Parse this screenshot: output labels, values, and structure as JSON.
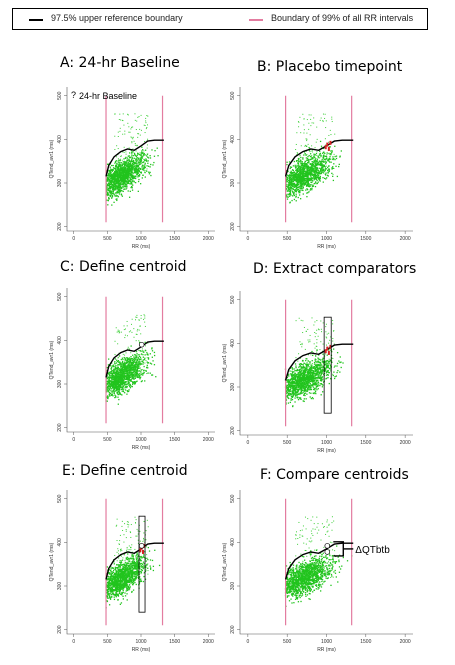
{
  "legend": {
    "black_label": "97.5% upper reference boundary",
    "pink_label": "Boundary of 99% of all RR intervals",
    "black_color": "#000000",
    "pink_color": "#e37ca0"
  },
  "chart_data": [
    {
      "type": "scatter",
      "panel": "A",
      "title": "A: 24-hr Baseline",
      "xlabel": "RR (ms)",
      "ylabel": "QTend_avr1 (ms)",
      "xlim": [
        -100,
        2100
      ],
      "ylim": [
        190,
        520
      ],
      "xticks": [
        0,
        500,
        1000,
        1500,
        2000
      ],
      "yticks": [
        200,
        300,
        400,
        500
      ],
      "boundary_x": [
        480,
        1320
      ],
      "upper_curve": [
        [
          480,
          315
        ],
        [
          520,
          340
        ],
        [
          600,
          360
        ],
        [
          700,
          372
        ],
        [
          800,
          378
        ],
        [
          900,
          375
        ],
        [
          1000,
          385
        ],
        [
          1100,
          396
        ],
        [
          1200,
          398
        ],
        [
          1340,
          398
        ]
      ],
      "inset_label": "24-hr Baseline",
      "marker": "none"
    },
    {
      "type": "scatter",
      "panel": "B",
      "title": "B: Placebo timepoint",
      "xlabel": "RR (ms)",
      "ylabel": "QTend_avr1 (ms)",
      "xlim": [
        -100,
        2100
      ],
      "ylim": [
        190,
        520
      ],
      "xticks": [
        0,
        500,
        1000,
        1500,
        2000
      ],
      "yticks": [
        200,
        300,
        400,
        500
      ],
      "boundary_x": [
        480,
        1320
      ],
      "upper_curve": [
        [
          480,
          315
        ],
        [
          520,
          340
        ],
        [
          600,
          360
        ],
        [
          700,
          372
        ],
        [
          800,
          378
        ],
        [
          900,
          375
        ],
        [
          1000,
          385
        ],
        [
          1100,
          396
        ],
        [
          1200,
          398
        ],
        [
          1340,
          398
        ]
      ],
      "placebo_points": [
        [
          990,
          382
        ],
        [
          1010,
          388
        ],
        [
          1030,
          378
        ],
        [
          1050,
          392
        ]
      ],
      "marker": "none"
    },
    {
      "type": "scatter",
      "panel": "C",
      "title": "C: Define centroid",
      "xlabel": "RR (ms)",
      "ylabel": "QTend_avr1 (ms)",
      "xlim": [
        -100,
        2100
      ],
      "ylim": [
        190,
        520
      ],
      "xticks": [
        0,
        500,
        1000,
        1500,
        2000
      ],
      "yticks": [
        200,
        300,
        400,
        500
      ],
      "boundary_x": [
        480,
        1320
      ],
      "upper_curve": [
        [
          480,
          315
        ],
        [
          520,
          340
        ],
        [
          600,
          360
        ],
        [
          700,
          372
        ],
        [
          800,
          378
        ],
        [
          900,
          375
        ],
        [
          1000,
          385
        ],
        [
          1100,
          396
        ],
        [
          1200,
          398
        ],
        [
          1340,
          398
        ]
      ],
      "centroid": [
        1010,
        390
      ],
      "marker": "centroid"
    },
    {
      "type": "scatter",
      "panel": "D",
      "title": "D: Extract comparators",
      "xlabel": "RR (ms)",
      "ylabel": "QTend_avr1 (ms)",
      "xlim": [
        -100,
        2100
      ],
      "ylim": [
        190,
        520
      ],
      "xticks": [
        0,
        500,
        1000,
        1500,
        2000
      ],
      "yticks": [
        200,
        300,
        400,
        500
      ],
      "boundary_x": [
        480,
        1320
      ],
      "upper_curve": [
        [
          480,
          315
        ],
        [
          520,
          340
        ],
        [
          600,
          360
        ],
        [
          700,
          372
        ],
        [
          800,
          378
        ],
        [
          900,
          375
        ],
        [
          1000,
          385
        ],
        [
          1100,
          396
        ],
        [
          1200,
          398
        ],
        [
          1340,
          398
        ]
      ],
      "placebo_points": [
        [
          990,
          382
        ],
        [
          1010,
          388
        ],
        [
          1030,
          378
        ],
        [
          1050,
          392
        ]
      ],
      "window_rect": [
        970,
        1060,
        240,
        460
      ],
      "marker": "window"
    },
    {
      "type": "scatter",
      "panel": "E",
      "title": "E: Define centroid",
      "xlabel": "RR (ms)",
      "ylabel": "QTend_avr1 (ms)",
      "xlim": [
        -100,
        2100
      ],
      "ylim": [
        190,
        520
      ],
      "xticks": [
        0,
        500,
        1000,
        1500,
        2000
      ],
      "yticks": [
        200,
        300,
        400,
        500
      ],
      "boundary_x": [
        480,
        1320
      ],
      "upper_curve": [
        [
          480,
          315
        ],
        [
          520,
          340
        ],
        [
          600,
          360
        ],
        [
          700,
          372
        ],
        [
          800,
          378
        ],
        [
          900,
          375
        ],
        [
          1000,
          385
        ],
        [
          1100,
          396
        ],
        [
          1200,
          398
        ],
        [
          1340,
          398
        ]
      ],
      "placebo_points": [
        [
          990,
          382
        ],
        [
          1010,
          388
        ],
        [
          1030,
          378
        ],
        [
          1050,
          392
        ]
      ],
      "window_rect": [
        970,
        1060,
        240,
        460
      ],
      "centroid": [
        1010,
        392
      ],
      "marker": "window-centroid"
    },
    {
      "type": "scatter",
      "panel": "F",
      "title": "F: Compare centroids",
      "xlabel": "RR (ms)",
      "ylabel": "QTend_avr1 (ms)",
      "xlim": [
        -100,
        2100
      ],
      "ylim": [
        190,
        520
      ],
      "xticks": [
        0,
        500,
        1000,
        1500,
        2000
      ],
      "yticks": [
        200,
        300,
        400,
        500
      ],
      "boundary_x": [
        480,
        1320
      ],
      "upper_curve": [
        [
          480,
          315
        ],
        [
          520,
          340
        ],
        [
          600,
          360
        ],
        [
          700,
          372
        ],
        [
          800,
          378
        ],
        [
          900,
          375
        ],
        [
          1000,
          385
        ],
        [
          1100,
          396
        ],
        [
          1200,
          398
        ],
        [
          1340,
          398
        ]
      ],
      "centroid": [
        1010,
        392
      ],
      "centroid2": [
        1010,
        378
      ],
      "delta_label": "ΔQTbtb",
      "marker": "compare"
    }
  ]
}
